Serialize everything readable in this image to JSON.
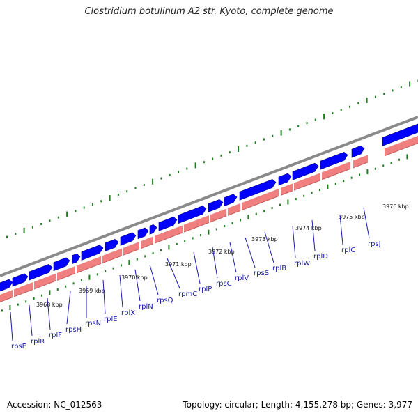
{
  "title": "Clostridium botulinum A2 str. Kyoto, complete genome",
  "footer": {
    "accession": "Accession: NC_012563",
    "summary": "Topology: circular; Length: 4,155,278 bp; Genes: 3,977"
  },
  "colors": {
    "backbone": "#8a8a8a",
    "gene_fill": "#0000ff",
    "gene_edge": "#00007a",
    "cds_fill": "#f08080",
    "cds_shadow": "#c05656",
    "tick": "#1e7d1e",
    "label": "#1a1aa6"
  },
  "kbp_labels": [
    "3968 kbp",
    "3969 kbp",
    "3970 kbp",
    "3971 kbp",
    "3972 kbp",
    "3973 kbp",
    "3974 kbp",
    "3975 kbp",
    "3976 kbp"
  ],
  "genes": [
    "rpsE",
    "rplR",
    "rplF",
    "rpsH",
    "rpsN",
    "rplE",
    "rplX",
    "rplN",
    "rpsQ",
    "rpmC",
    "rplP",
    "rpsC",
    "rplV",
    "rpsS",
    "rplB",
    "rplW",
    "rplD",
    "rplC",
    "rpsJ"
  ]
}
